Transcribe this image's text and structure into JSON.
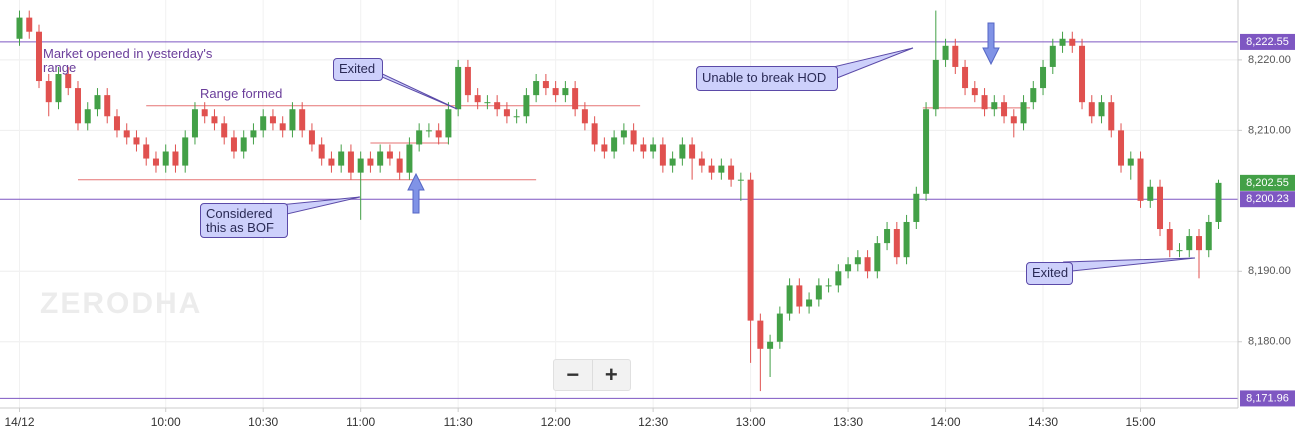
{
  "chart_data": {
    "type": "candlestick",
    "x": [
      "09:15",
      "09:18",
      "09:21",
      "09:24",
      "09:27",
      "09:30",
      "09:33",
      "09:36",
      "09:39",
      "09:42",
      "09:45",
      "09:48",
      "09:51",
      "09:54",
      "09:57",
      "10:00",
      "10:03",
      "10:06",
      "10:09",
      "10:12",
      "10:15",
      "10:18",
      "10:21",
      "10:24",
      "10:27",
      "10:30",
      "10:33",
      "10:36",
      "10:39",
      "10:42",
      "10:45",
      "10:48",
      "10:51",
      "10:54",
      "10:57",
      "11:00",
      "11:03",
      "11:06",
      "11:09",
      "11:12",
      "11:15",
      "11:18",
      "11:21",
      "11:24",
      "11:27",
      "11:30",
      "11:33",
      "11:36",
      "11:39",
      "11:42",
      "11:45",
      "11:48",
      "11:51",
      "11:54",
      "11:57",
      "12:00",
      "12:03",
      "12:06",
      "12:09",
      "12:12",
      "12:15",
      "12:18",
      "12:21",
      "12:24",
      "12:27",
      "12:30",
      "12:33",
      "12:36",
      "12:39",
      "12:42",
      "12:45",
      "12:48",
      "12:51",
      "12:54",
      "12:57",
      "13:00",
      "13:03",
      "13:06",
      "13:09",
      "13:12",
      "13:15",
      "13:18",
      "13:21",
      "13:24",
      "13:27",
      "13:30",
      "13:33",
      "13:36",
      "13:39",
      "13:42",
      "13:45",
      "13:48",
      "13:51",
      "13:54",
      "13:57",
      "14:00",
      "14:03",
      "14:06",
      "14:09",
      "14:12",
      "14:15",
      "14:18",
      "14:21",
      "14:24",
      "14:27",
      "14:30",
      "14:33",
      "14:36",
      "14:39",
      "14:42",
      "14:45",
      "14:48",
      "14:51",
      "14:54",
      "14:57",
      "15:00",
      "15:03",
      "15:06",
      "15:09",
      "15:12",
      "15:15",
      "15:18",
      "15:21",
      "15:24"
    ],
    "ohlc": [
      [
        8223,
        8227,
        8222,
        8226
      ],
      [
        8226,
        8227,
        8223,
        8224
      ],
      [
        8224,
        8225,
        8216,
        8217
      ],
      [
        8217,
        8218,
        8212,
        8214
      ],
      [
        8214,
        8219,
        8213,
        8218
      ],
      [
        8218,
        8219,
        8215,
        8216
      ],
      [
        8216,
        8217,
        8210,
        8211
      ],
      [
        8211,
        8214,
        8210,
        8213
      ],
      [
        8213,
        8216,
        8212,
        8215
      ],
      [
        8215,
        8216,
        8211,
        8212
      ],
      [
        8212,
        8213,
        8209,
        8210
      ],
      [
        8210,
        8211,
        8208,
        8209
      ],
      [
        8209,
        8210,
        8207,
        8208
      ],
      [
        8208,
        8209,
        8205,
        8206
      ],
      [
        8206,
        8207,
        8204,
        8205
      ],
      [
        8205,
        8208,
        8204,
        8207
      ],
      [
        8207,
        8208,
        8204,
        8205
      ],
      [
        8205,
        8210,
        8204,
        8209
      ],
      [
        8209,
        8214,
        8208,
        8213
      ],
      [
        8213,
        8214,
        8211,
        8212
      ],
      [
        8212,
        8213,
        8210,
        8211
      ],
      [
        8211,
        8212,
        8208,
        8209
      ],
      [
        8209,
        8210,
        8206,
        8207
      ],
      [
        8207,
        8210,
        8206,
        8209
      ],
      [
        8209,
        8211,
        8208,
        8210
      ],
      [
        8210,
        8213,
        8209,
        8212
      ],
      [
        8212,
        8213,
        8210,
        8211
      ],
      [
        8211,
        8212,
        8209,
        8210
      ],
      [
        8210,
        8214,
        8209,
        8213
      ],
      [
        8213,
        8214,
        8209,
        8210
      ],
      [
        8210,
        8211,
        8207,
        8208
      ],
      [
        8208,
        8209,
        8205,
        8206
      ],
      [
        8206,
        8207,
        8204,
        8205
      ],
      [
        8205,
        8208,
        8204,
        8207
      ],
      [
        8207,
        8208,
        8203,
        8204
      ],
      [
        8204,
        8207,
        8197.3,
        8206
      ],
      [
        8206,
        8207,
        8204,
        8205
      ],
      [
        8205,
        8208,
        8204,
        8207
      ],
      [
        8207,
        8208,
        8205,
        8206
      ],
      [
        8206,
        8207,
        8203,
        8204
      ],
      [
        8204,
        8209,
        8203,
        8208
      ],
      [
        8208,
        8211,
        8207,
        8210
      ],
      [
        8210,
        8211,
        8209,
        8210
      ],
      [
        8210,
        8211,
        8208,
        8209
      ],
      [
        8209,
        8214,
        8208,
        8213
      ],
      [
        8213,
        8220,
        8212,
        8219
      ],
      [
        8219,
        8220,
        8214,
        8215
      ],
      [
        8215,
        8216,
        8213,
        8214
      ],
      [
        8214,
        8215,
        8213,
        8214
      ],
      [
        8214,
        8215,
        8212,
        8213
      ],
      [
        8213,
        8214,
        8211,
        8212
      ],
      [
        8212,
        8213,
        8211,
        8212
      ],
      [
        8212,
        8216,
        8211,
        8215
      ],
      [
        8215,
        8218,
        8214,
        8217
      ],
      [
        8217,
        8218,
        8215,
        8216
      ],
      [
        8216,
        8217,
        8214,
        8215
      ],
      [
        8215,
        8217,
        8214,
        8216
      ],
      [
        8216,
        8217,
        8212,
        8213
      ],
      [
        8213,
        8214,
        8210,
        8211
      ],
      [
        8211,
        8212,
        8207,
        8208
      ],
      [
        8208,
        8209,
        8206,
        8207
      ],
      [
        8207,
        8210,
        8206,
        8209
      ],
      [
        8209,
        8211,
        8208,
        8210
      ],
      [
        8210,
        8211,
        8207,
        8208
      ],
      [
        8208,
        8209,
        8206,
        8207
      ],
      [
        8207,
        8209,
        8206,
        8208
      ],
      [
        8208,
        8209,
        8204,
        8205
      ],
      [
        8205,
        8207,
        8204,
        8206
      ],
      [
        8206,
        8209,
        8205,
        8208
      ],
      [
        8208,
        8209,
        8203,
        8206
      ],
      [
        8206,
        8207,
        8204,
        8205
      ],
      [
        8205,
        8206,
        8203,
        8204
      ],
      [
        8204,
        8206,
        8203,
        8205
      ],
      [
        8205,
        8206,
        8202,
        8203
      ],
      [
        8203,
        8204,
        8200,
        8203
      ],
      [
        8203,
        8204,
        8177,
        8183
      ],
      [
        8183,
        8184,
        8173,
        8179
      ],
      [
        8179,
        8181,
        8175,
        8180
      ],
      [
        8180,
        8185,
        8179,
        8184
      ],
      [
        8184,
        8189,
        8183,
        8188
      ],
      [
        8188,
        8189,
        8184,
        8185
      ],
      [
        8185,
        8187,
        8184,
        8186
      ],
      [
        8186,
        8189,
        8185,
        8188
      ],
      [
        8188,
        8189,
        8187,
        8188
      ],
      [
        8188,
        8191,
        8187,
        8190
      ],
      [
        8190,
        8192,
        8189,
        8191
      ],
      [
        8191,
        8193,
        8190,
        8192
      ],
      [
        8192,
        8193,
        8189,
        8190
      ],
      [
        8190,
        8195,
        8189,
        8194
      ],
      [
        8194,
        8197,
        8193,
        8196
      ],
      [
        8196,
        8197,
        8191,
        8192
      ],
      [
        8192,
        8198,
        8191,
        8197
      ],
      [
        8197,
        8202,
        8196,
        8201
      ],
      [
        8201,
        8214,
        8200,
        8213
      ],
      [
        8213,
        8227,
        8212,
        8220
      ],
      [
        8220,
        8223,
        8219,
        8222
      ],
      [
        8222,
        8223,
        8218,
        8219
      ],
      [
        8219,
        8220,
        8215,
        8216
      ],
      [
        8216,
        8217,
        8214,
        8215
      ],
      [
        8215,
        8216,
        8212,
        8213
      ],
      [
        8213,
        8215,
        8212,
        8214
      ],
      [
        8214,
        8215,
        8211,
        8212
      ],
      [
        8212,
        8213,
        8209,
        8211
      ],
      [
        8211,
        8215,
        8210,
        8214
      ],
      [
        8214,
        8217,
        8213,
        8216
      ],
      [
        8216,
        8220,
        8215,
        8219
      ],
      [
        8219,
        8223,
        8218,
        8222
      ],
      [
        8222,
        8224,
        8221,
        8223
      ],
      [
        8223,
        8224,
        8221,
        8222
      ],
      [
        8222,
        8223,
        8213,
        8214
      ],
      [
        8214,
        8215,
        8211,
        8212
      ],
      [
        8212,
        8215,
        8211,
        8214
      ],
      [
        8214,
        8215,
        8209,
        8210
      ],
      [
        8210,
        8211,
        8204,
        8205
      ],
      [
        8205,
        8207,
        8203,
        8206
      ],
      [
        8206,
        8207,
        8199,
        8200
      ],
      [
        8200,
        8203,
        8199,
        8202
      ],
      [
        8202,
        8203,
        8195,
        8196
      ],
      [
        8196,
        8197,
        8192,
        8193
      ],
      [
        8193,
        8194,
        8192,
        8193
      ],
      [
        8193,
        8196,
        8192,
        8195
      ],
      [
        8195,
        8196,
        8189,
        8193
      ],
      [
        8193,
        8198,
        8192,
        8197
      ],
      [
        8197,
        8203,
        8196,
        8202.55
      ]
    ],
    "up_color": "#43a047",
    "down_color": "#e0514f",
    "xlim": [
      "09:09",
      "15:30"
    ],
    "xticks": [
      {
        "value": "09:15",
        "label": "14/12"
      },
      "10:00",
      "10:30",
      "11:00",
      "11:30",
      "12:00",
      "12:30",
      "13:00",
      "13:30",
      "14:00",
      "14:30",
      "15:00"
    ],
    "ylim": [
      8170.6,
      8228.5
    ],
    "yticks": [
      {
        "value": 8180,
        "label": "8,180.00"
      },
      {
        "value": 8190,
        "label": "8,190.00"
      },
      {
        "value": 8210,
        "label": "8,210.00"
      },
      {
        "value": 8220,
        "label": "8,220.00"
      }
    ],
    "grid": true,
    "price_lines": [
      {
        "value": 8222.55,
        "label": "8,222.55"
      },
      {
        "value": 8200.23,
        "label": "8,200.23"
      },
      {
        "value": 8171.96,
        "label": "8,171.96"
      }
    ],
    "price_line_color": "#7e57c2",
    "last_price": {
      "value": 8202.55,
      "label": "8,202.55"
    },
    "range_lines": [
      {
        "x": [
          "09:54",
          "12:26"
        ],
        "y": 8213.5
      },
      {
        "x": [
          "09:33",
          "11:54"
        ],
        "y": 8203
      },
      {
        "x": [
          "11:03",
          "11:27"
        ],
        "y": 8208.2
      },
      {
        "x": [
          "13:53",
          "14:26"
        ],
        "y": 8213.2
      }
    ],
    "range_line_color": "#e57373",
    "annotations": [
      "Market opened in yesterday's range",
      "Range formed",
      "Exited",
      "Considered this as BOF",
      "Unable to break HOD",
      "Exited"
    ],
    "watermark": "ZERODHA",
    "zoom_controls": [
      "−",
      "+"
    ]
  }
}
